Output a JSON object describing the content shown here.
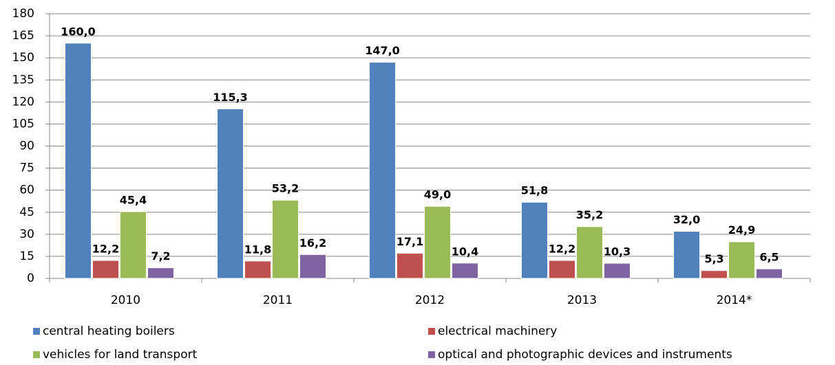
{
  "chart_data": {
    "type": "bar",
    "categories": [
      "2010",
      "2011",
      "2012",
      "2013",
      "2014*"
    ],
    "series": [
      {
        "name": "central heating boilers",
        "color": "#4f81bd",
        "values": [
          160.0,
          115.3,
          147.0,
          51.8,
          32.0
        ],
        "value_labels": [
          "160,0",
          "115,3",
          "147,0",
          "51,8",
          "32,0"
        ]
      },
      {
        "name": "electrical machinery",
        "color": "#c0504d",
        "values": [
          12.2,
          11.8,
          17.1,
          12.2,
          5.3
        ],
        "value_labels": [
          "12,2",
          "11,8",
          "17,1",
          "12,2",
          "5,3"
        ]
      },
      {
        "name": "vehicles for land transport",
        "color": "#9bbb59",
        "values": [
          45.4,
          53.2,
          49.0,
          35.2,
          24.9
        ],
        "value_labels": [
          "45,4",
          "53,2",
          "49,0",
          "35,2",
          "24,9"
        ]
      },
      {
        "name": "optical and photographic devices and instruments",
        "color": "#8064a2",
        "values": [
          7.2,
          16.2,
          10.4,
          10.3,
          6.5
        ],
        "value_labels": [
          "7,2",
          "16,2",
          "10,4",
          "10,3",
          "6,5"
        ]
      }
    ],
    "ylim": [
      0,
      180
    ],
    "yticks": [
      0,
      15,
      30,
      45,
      60,
      75,
      90,
      105,
      120,
      135,
      150,
      165,
      180
    ],
    "grid": true,
    "legend": "bottom"
  }
}
